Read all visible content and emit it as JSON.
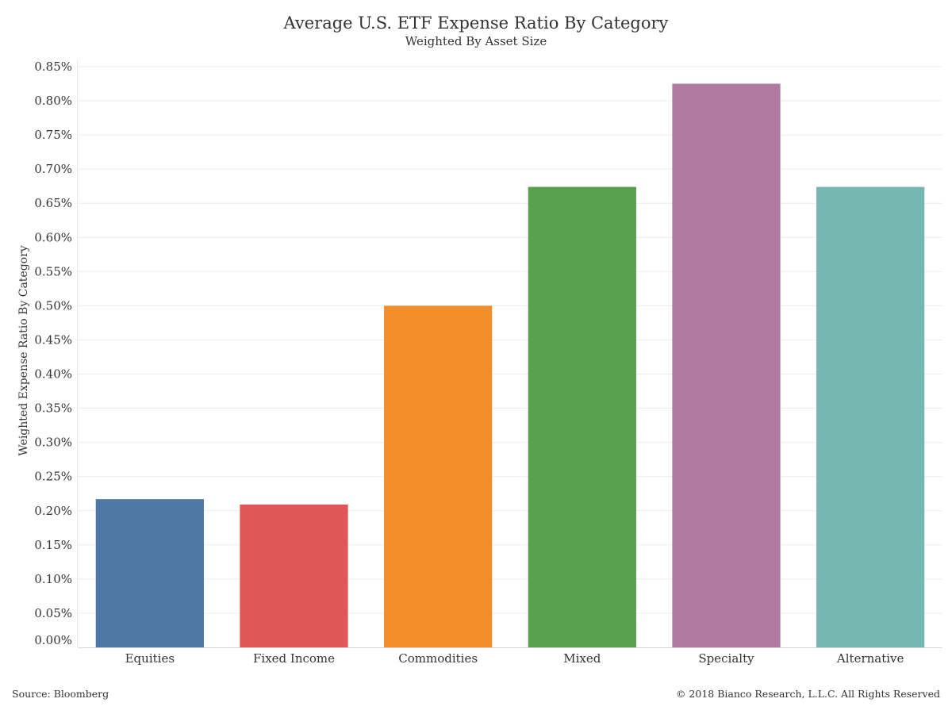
{
  "chart_data": {
    "type": "bar",
    "title": "Average U.S. ETF Expense Ratio By Category",
    "subtitle": "Weighted By Asset Size",
    "ylabel": "Weighted Expense Ratio By Category",
    "xlabel": "",
    "categories": [
      "Equities",
      "Fixed Income",
      "Commodities",
      "Mixed",
      "Specialty",
      "Alternative"
    ],
    "values": [
      0.217,
      0.209,
      0.5,
      0.674,
      0.825,
      0.674
    ],
    "colors": [
      "#4e79a7",
      "#e15759",
      "#f28e2b",
      "#59a14f",
      "#b07aa1",
      "#76b7b2"
    ],
    "ylim": [
      0,
      0.85
    ],
    "yticks": [
      0,
      0.05,
      0.1,
      0.15,
      0.2,
      0.25,
      0.3,
      0.35,
      0.4,
      0.45,
      0.5,
      0.55,
      0.6,
      0.65,
      0.7,
      0.75,
      0.8,
      0.85
    ],
    "ytick_labels": [
      "0.00%",
      "0.05%",
      "0.10%",
      "0.15%",
      "0.20%",
      "0.25%",
      "0.30%",
      "0.35%",
      "0.40%",
      "0.45%",
      "0.50%",
      "0.55%",
      "0.60%",
      "0.65%",
      "0.70%",
      "0.75%",
      "0.80%",
      "0.85%"
    ],
    "grid": true,
    "legend": "none"
  },
  "footer": {
    "source": "Source: Bloomberg",
    "copyright": "© 2018 Bianco Research, L.L.C. All Rights Reserved"
  }
}
